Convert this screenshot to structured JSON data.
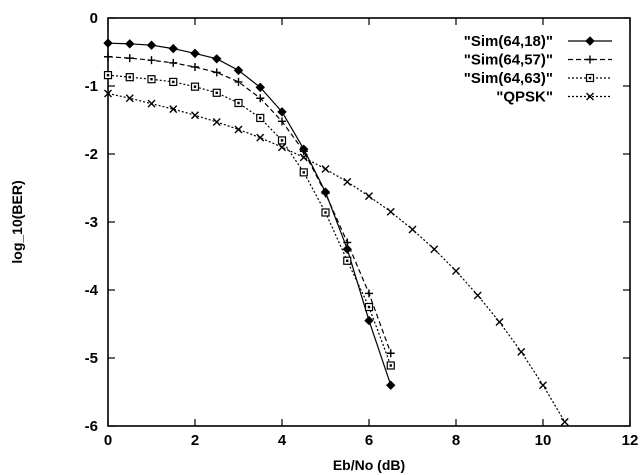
{
  "chart_data": {
    "type": "line",
    "xlabel": "Eb/No (dB)",
    "ylabel": "log_10(BER)",
    "xlim": [
      0,
      12
    ],
    "ylim": [
      -6,
      0
    ],
    "xticks": [
      0,
      2,
      4,
      6,
      8,
      10,
      12
    ],
    "yticks": [
      0,
      -1,
      -2,
      -3,
      -4,
      -5,
      -6
    ],
    "grid": false,
    "legend_position": "top-right",
    "series": [
      {
        "name": "\"Sim(64,18)\"",
        "marker": "filled-diamond",
        "line_style": "solid",
        "x": [
          0,
          0.5,
          1,
          1.5,
          2,
          2.5,
          3,
          3.5,
          4,
          4.5,
          5,
          5.5,
          6,
          6.5
        ],
        "y": [
          -0.37,
          -0.38,
          -0.4,
          -0.45,
          -0.52,
          -0.6,
          -0.77,
          -1.02,
          -1.38,
          -1.93,
          -2.56,
          -3.4,
          -4.45,
          -5.4
        ]
      },
      {
        "name": "\"Sim(64,57)\"",
        "marker": "plus",
        "line_style": "dashed",
        "x": [
          0,
          0.5,
          1,
          1.5,
          2,
          2.5,
          3,
          3.5,
          4,
          4.5,
          5,
          5.5,
          6,
          6.5
        ],
        "y": [
          -0.57,
          -0.59,
          -0.62,
          -0.66,
          -0.72,
          -0.8,
          -0.94,
          -1.18,
          -1.52,
          -1.96,
          -2.58,
          -3.3,
          -4.05,
          -4.93
        ]
      },
      {
        "name": "\"Sim(64,63)\"",
        "marker": "open-square",
        "line_style": "dotted",
        "x": [
          0,
          0.5,
          1,
          1.5,
          2,
          2.5,
          3,
          3.5,
          4,
          4.5,
          5,
          5.5,
          6,
          6.5
        ],
        "y": [
          -0.84,
          -0.87,
          -0.9,
          -0.94,
          -1.01,
          -1.1,
          -1.25,
          -1.47,
          -1.8,
          -2.27,
          -2.86,
          -3.57,
          -4.25,
          -5.11
        ]
      },
      {
        "name": "\"QPSK\"",
        "marker": "cross",
        "line_style": "dotted",
        "x": [
          0,
          0.5,
          1,
          1.5,
          2,
          2.5,
          3,
          3.5,
          4,
          4.5,
          5,
          5.5,
          6,
          6.5,
          7,
          7.5,
          8,
          8.5,
          9,
          9.5,
          10,
          10.5
        ],
        "y": [
          -1.11,
          -1.18,
          -1.26,
          -1.34,
          -1.43,
          -1.53,
          -1.64,
          -1.76,
          -1.9,
          -2.05,
          -2.22,
          -2.41,
          -2.62,
          -2.85,
          -3.11,
          -3.4,
          -3.72,
          -4.08,
          -4.47,
          -4.91,
          -5.4,
          -5.94
        ]
      }
    ]
  }
}
